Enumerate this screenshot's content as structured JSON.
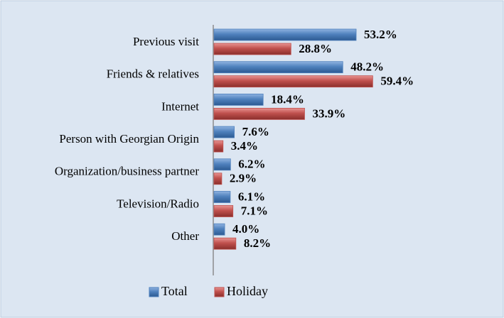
{
  "chart_data": {
    "type": "hbar",
    "categories": [
      "Previous visit",
      "Friends & relatives",
      "Internet",
      "Person with Georgian Origin",
      "Organization/business partner",
      "Television/Radio",
      "Other"
    ],
    "series": [
      {
        "name": "Total",
        "color": "#4f81bd",
        "values": [
          53.2,
          48.2,
          18.4,
          7.6,
          6.2,
          6.1,
          4.0
        ],
        "value_labels": [
          "53.2%",
          "48.2%",
          "18.4%",
          "7.6%",
          "6.2%",
          "6.1%",
          "4.0%"
        ]
      },
      {
        "name": "Holiday",
        "color": "#c0504d",
        "values": [
          28.8,
          59.4,
          33.9,
          3.4,
          2.9,
          7.1,
          8.2
        ],
        "value_labels": [
          "28.8%",
          "59.4%",
          "33.9%",
          "3.4%",
          "2.9%",
          "7.1%",
          "8.2%"
        ]
      }
    ],
    "legend": "bottom"
  }
}
